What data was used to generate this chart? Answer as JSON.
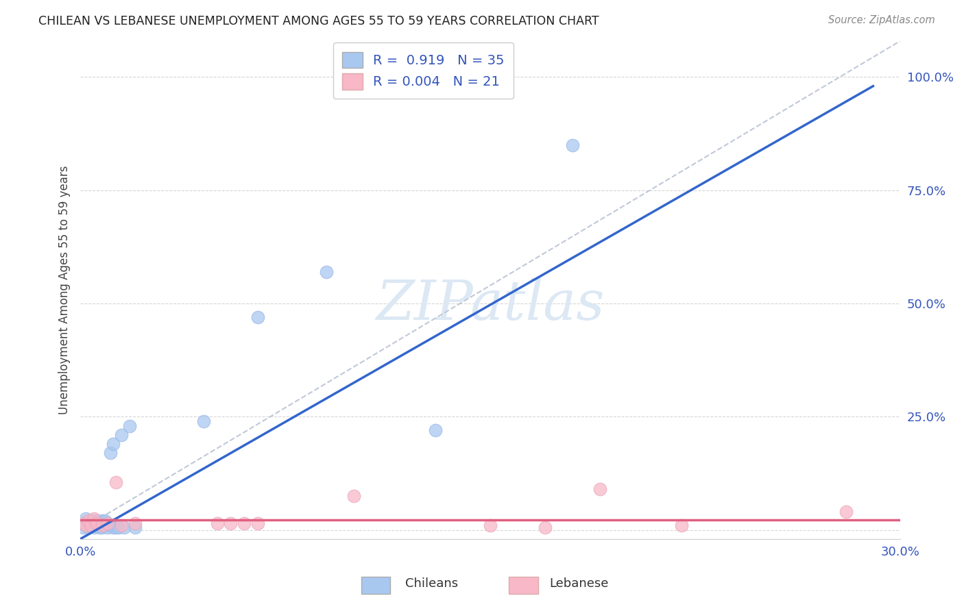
{
  "title": "CHILEAN VS LEBANESE UNEMPLOYMENT AMONG AGES 55 TO 59 YEARS CORRELATION CHART",
  "source": "Source: ZipAtlas.com",
  "xlabel_chileans": "Chileans",
  "xlabel_lebanese": "Lebanese",
  "ylabel": "Unemployment Among Ages 55 to 59 years",
  "xmin": 0.0,
  "xmax": 0.3,
  "ymin": -0.02,
  "ymax": 1.08,
  "chilean_R": 0.919,
  "chilean_N": 35,
  "lebanese_R": 0.004,
  "lebanese_N": 21,
  "yticks": [
    0.0,
    0.25,
    0.5,
    0.75,
    1.0
  ],
  "ytick_labels": [
    "",
    "25.0%",
    "50.0%",
    "75.0%",
    "100.0%"
  ],
  "xticks": [
    0.0,
    0.05,
    0.1,
    0.15,
    0.2,
    0.25,
    0.3
  ],
  "xtick_labels": [
    "0.0%",
    "",
    "",
    "",
    "",
    "",
    "30.0%"
  ],
  "chilean_color": "#a8c8f0",
  "chilean_line_color": "#3366cc",
  "lebanese_color": "#f8b8c8",
  "lebanese_line_color": "#e06080",
  "dashed_line_color": "#c0c8d8",
  "watermark_color": "#dce8f4",
  "background_color": "#ffffff",
  "chilean_x": [
    0.001,
    0.001,
    0.002,
    0.002,
    0.003,
    0.003,
    0.004,
    0.004,
    0.005,
    0.005,
    0.005,
    0.006,
    0.006,
    0.007,
    0.007,
    0.008,
    0.008,
    0.009,
    0.009,
    0.01,
    0.01,
    0.011,
    0.012,
    0.012,
    0.013,
    0.014,
    0.015,
    0.016,
    0.018,
    0.02,
    0.045,
    0.065,
    0.09,
    0.13,
    0.18
  ],
  "chilean_y": [
    0.005,
    0.015,
    0.01,
    0.025,
    0.005,
    0.015,
    0.01,
    0.02,
    0.005,
    0.01,
    0.02,
    0.01,
    0.02,
    0.005,
    0.015,
    0.005,
    0.02,
    0.01,
    0.02,
    0.005,
    0.015,
    0.17,
    0.19,
    0.005,
    0.005,
    0.005,
    0.21,
    0.005,
    0.23,
    0.005,
    0.24,
    0.47,
    0.57,
    0.22,
    0.85
  ],
  "lebanese_x": [
    0.001,
    0.002,
    0.003,
    0.004,
    0.005,
    0.006,
    0.008,
    0.01,
    0.013,
    0.015,
    0.02,
    0.05,
    0.055,
    0.06,
    0.065,
    0.1,
    0.15,
    0.17,
    0.19,
    0.22,
    0.28
  ],
  "lebanese_y": [
    0.015,
    0.01,
    0.02,
    0.01,
    0.025,
    0.015,
    0.01,
    0.015,
    0.105,
    0.01,
    0.015,
    0.015,
    0.015,
    0.015,
    0.015,
    0.075,
    0.01,
    0.005,
    0.09,
    0.01,
    0.04
  ],
  "chilean_line_x0": 0.0,
  "chilean_line_x1": 0.29,
  "chilean_line_y0": -0.02,
  "chilean_line_y1": 0.98,
  "lebanese_line_y_const": 0.022
}
